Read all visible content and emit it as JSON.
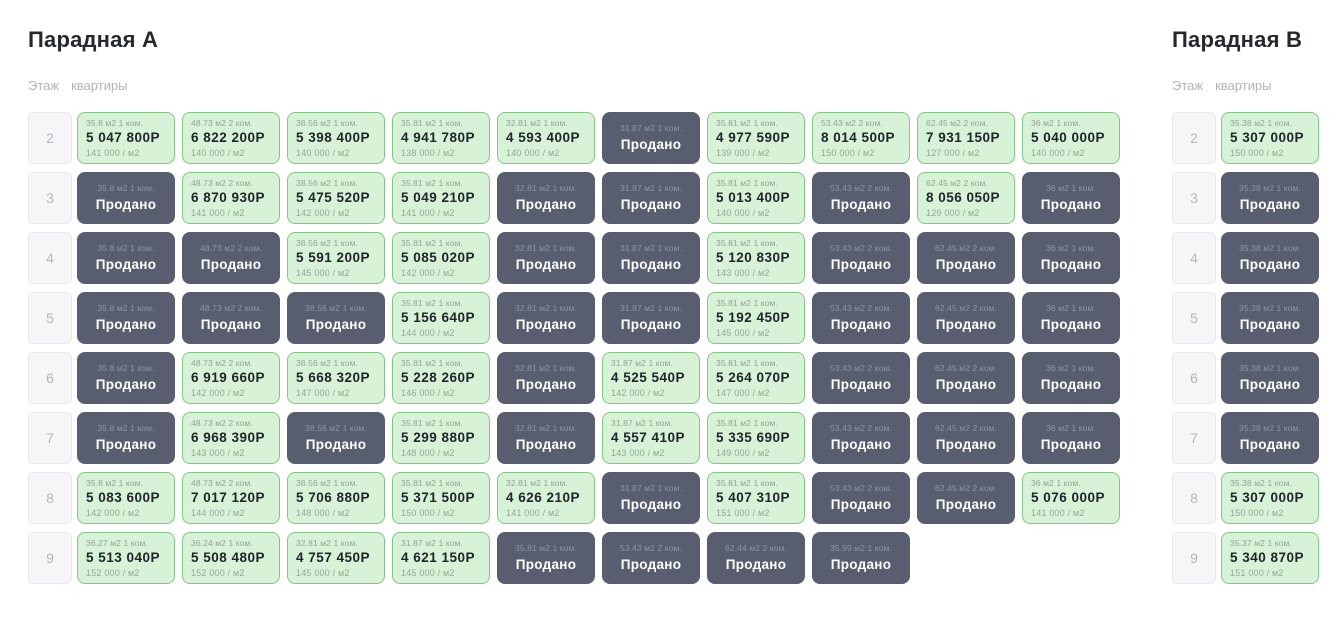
{
  "labels": {
    "sold": "Продано",
    "legend_floor": "Этаж",
    "legend_apartments": "квартиры"
  },
  "colors": {
    "available_bg": "#d7f2d6",
    "available_border": "#82c785",
    "sold_bg": "#585e70",
    "page_bg": "#ffffff"
  },
  "sections": [
    {
      "title": "Парадная А",
      "rows": [
        {
          "floor": "2",
          "cards": [
            {
              "area": "35.8 м2 1 ком.",
              "sold": false,
              "price": "5 047 800Р",
              "per_m2": "141 000 / м2"
            },
            {
              "area": "48.73 м2 2 ком.",
              "sold": false,
              "price": "6 822 200Р",
              "per_m2": "140 000 / м2"
            },
            {
              "area": "38.56 м2 1 ком.",
              "sold": false,
              "price": "5 398 400Р",
              "per_m2": "140 000 / м2"
            },
            {
              "area": "35.81 м2 1 ком.",
              "sold": false,
              "price": "4 941 780Р",
              "per_m2": "138 000 / м2"
            },
            {
              "area": "32.81 м2 1 ком.",
              "sold": false,
              "price": "4 593 400Р",
              "per_m2": "140 000 / м2"
            },
            {
              "area": "31.87 м2 1 ком.",
              "sold": true
            },
            {
              "area": "35.81 м2 1 ком.",
              "sold": false,
              "price": "4 977 590Р",
              "per_m2": "139 000 / м2"
            },
            {
              "area": "53.43 м2 2 ком.",
              "sold": false,
              "price": "8 014 500Р",
              "per_m2": "150 000 / м2"
            },
            {
              "area": "62.45 м2 2 ком.",
              "sold": false,
              "price": "7 931 150Р",
              "per_m2": "127 000 / м2"
            },
            {
              "area": "36 м2 1 ком.",
              "sold": false,
              "price": "5 040 000Р",
              "per_m2": "140 000 / м2"
            }
          ]
        },
        {
          "floor": "3",
          "cards": [
            {
              "area": "35.8 м2 1 ком.",
              "sold": true
            },
            {
              "area": "48.73 м2 2 ком.",
              "sold": false,
              "price": "6 870 930Р",
              "per_m2": "141 000 / м2"
            },
            {
              "area": "38.56 м2 1 ком.",
              "sold": false,
              "price": "5 475 520Р",
              "per_m2": "142 000 / м2"
            },
            {
              "area": "35.81 м2 1 ком.",
              "sold": false,
              "price": "5 049 210Р",
              "per_m2": "141 000 / м2"
            },
            {
              "area": "32.81 м2 1 ком.",
              "sold": true
            },
            {
              "area": "31.87 м2 1 ком.",
              "sold": true
            },
            {
              "area": "35.81 м2 1 ком.",
              "sold": false,
              "price": "5 013 400Р",
              "per_m2": "140 000 / м2"
            },
            {
              "area": "53.43 м2 2 ком.",
              "sold": true
            },
            {
              "area": "62.45 м2 2 ком.",
              "sold": false,
              "price": "8 056 050Р",
              "per_m2": "129 000 / м2"
            },
            {
              "area": "36 м2 1 ком.",
              "sold": true
            }
          ]
        },
        {
          "floor": "4",
          "cards": [
            {
              "area": "35.8 м2 1 ком.",
              "sold": true
            },
            {
              "area": "48.73 м2 2 ком.",
              "sold": true
            },
            {
              "area": "38.56 м2 1 ком.",
              "sold": false,
              "price": "5 591 200Р",
              "per_m2": "145 000 / м2"
            },
            {
              "area": "35.81 м2 1 ком.",
              "sold": false,
              "price": "5 085 020Р",
              "per_m2": "142 000 / м2"
            },
            {
              "area": "32.81 м2 1 ком.",
              "sold": true
            },
            {
              "area": "31.87 м2 1 ком.",
              "sold": true
            },
            {
              "area": "35.81 м2 1 ком.",
              "sold": false,
              "price": "5 120 830Р",
              "per_m2": "143 000 / м2"
            },
            {
              "area": "53.43 м2 2 ком.",
              "sold": true
            },
            {
              "area": "62.45 м2 2 ком.",
              "sold": true
            },
            {
              "area": "36 м2 1 ком.",
              "sold": true
            }
          ]
        },
        {
          "floor": "5",
          "cards": [
            {
              "area": "35.8 м2 1 ком.",
              "sold": true
            },
            {
              "area": "48.73 м2 2 ком.",
              "sold": true
            },
            {
              "area": "38.56 м2 1 ком.",
              "sold": true
            },
            {
              "area": "35.81 м2 1 ком.",
              "sold": false,
              "price": "5 156 640Р",
              "per_m2": "144 000 / м2"
            },
            {
              "area": "32.81 м2 1 ком.",
              "sold": true
            },
            {
              "area": "31.87 м2 1 ком.",
              "sold": true
            },
            {
              "area": "35.81 м2 1 ком.",
              "sold": false,
              "price": "5 192 450Р",
              "per_m2": "145 000 / м2"
            },
            {
              "area": "53.43 м2 2 ком.",
              "sold": true
            },
            {
              "area": "62.45 м2 2 ком.",
              "sold": true
            },
            {
              "area": "36 м2 1 ком.",
              "sold": true
            }
          ]
        },
        {
          "floor": "6",
          "cards": [
            {
              "area": "35.8 м2 1 ком.",
              "sold": true
            },
            {
              "area": "48.73 м2 2 ком.",
              "sold": false,
              "price": "6 919 660Р",
              "per_m2": "142 000 / м2"
            },
            {
              "area": "38.56 м2 1 ком.",
              "sold": false,
              "price": "5 668 320Р",
              "per_m2": "147 000 / м2"
            },
            {
              "area": "35.81 м2 1 ком.",
              "sold": false,
              "price": "5 228 260Р",
              "per_m2": "146 000 / м2"
            },
            {
              "area": "32.81 м2 1 ком.",
              "sold": true
            },
            {
              "area": "31.87 м2 1 ком.",
              "sold": false,
              "price": "4 525 540Р",
              "per_m2": "142 000 / м2"
            },
            {
              "area": "35.81 м2 1 ком.",
              "sold": false,
              "price": "5 264 070Р",
              "per_m2": "147 000 / м2"
            },
            {
              "area": "53.43 м2 2 ком.",
              "sold": true
            },
            {
              "area": "62.45 м2 2 ком.",
              "sold": true
            },
            {
              "area": "36 м2 1 ком.",
              "sold": true
            }
          ]
        },
        {
          "floor": "7",
          "cards": [
            {
              "area": "35.8 м2 1 ком.",
              "sold": true
            },
            {
              "area": "48.73 м2 2 ком.",
              "sold": false,
              "price": "6 968 390Р",
              "per_m2": "143 000 / м2"
            },
            {
              "area": "38.56 м2 1 ком.",
              "sold": true
            },
            {
              "area": "35.81 м2 1 ком.",
              "sold": false,
              "price": "5 299 880Р",
              "per_m2": "148 000 / м2"
            },
            {
              "area": "32.81 м2 1 ком.",
              "sold": true
            },
            {
              "area": "31.87 м2 1 ком.",
              "sold": false,
              "price": "4 557 410Р",
              "per_m2": "143 000 / м2"
            },
            {
              "area": "35.81 м2 1 ком.",
              "sold": false,
              "price": "5 335 690Р",
              "per_m2": "149 000 / м2"
            },
            {
              "area": "53.43 м2 2 ком.",
              "sold": true
            },
            {
              "area": "62.45 м2 2 ком.",
              "sold": true
            },
            {
              "area": "36 м2 1 ком.",
              "sold": true
            }
          ]
        },
        {
          "floor": "8",
          "cards": [
            {
              "area": "35.8 м2 1 ком.",
              "sold": false,
              "price": "5 083 600Р",
              "per_m2": "142 000 / м2"
            },
            {
              "area": "48.73 м2 2 ком.",
              "sold": false,
              "price": "7 017 120Р",
              "per_m2": "144 000 / м2"
            },
            {
              "area": "38.56 м2 1 ком.",
              "sold": false,
              "price": "5 706 880Р",
              "per_m2": "148 000 / м2"
            },
            {
              "area": "35.81 м2 1 ком.",
              "sold": false,
              "price": "5 371 500Р",
              "per_m2": "150 000 / м2"
            },
            {
              "area": "32.81 м2 1 ком.",
              "sold": false,
              "price": "4 626 210Р",
              "per_m2": "141 000 / м2"
            },
            {
              "area": "31.87 м2 1 ком.",
              "sold": true
            },
            {
              "area": "35.81 м2 1 ком.",
              "sold": false,
              "price": "5 407 310Р",
              "per_m2": "151 000 / м2"
            },
            {
              "area": "53.43 м2 2 ком.",
              "sold": true
            },
            {
              "area": "62.45 м2 2 ком.",
              "sold": true
            },
            {
              "area": "36 м2 1 ком.",
              "sold": false,
              "price": "5 076 000Р",
              "per_m2": "141 000 / м2"
            }
          ]
        },
        {
          "floor": "9",
          "cards": [
            {
              "area": "36.27 м2 1 ком.",
              "sold": false,
              "price": "5 513 040Р",
              "per_m2": "152 000 / м2"
            },
            {
              "area": "36.24 м2 1 ком.",
              "sold": false,
              "price": "5 508 480Р",
              "per_m2": "152 000 / м2"
            },
            {
              "area": "32.81 м2 1 ком.",
              "sold": false,
              "price": "4 757 450Р",
              "per_m2": "145 000 / м2"
            },
            {
              "area": "31.87 м2 1 ком.",
              "sold": false,
              "price": "4 621 150Р",
              "per_m2": "145 000 / м2"
            },
            {
              "area": "35.81 м2 1 ком.",
              "sold": true
            },
            {
              "area": "53.43 м2 2 ком.",
              "sold": true
            },
            {
              "area": "62.44 м2 2 ком.",
              "sold": true
            },
            {
              "area": "35.99 м2 1 ком.",
              "sold": true
            }
          ]
        }
      ]
    },
    {
      "title": "Парадная B",
      "rows": [
        {
          "floor": "2",
          "cards": [
            {
              "area": "35.38 м2 1 ком.",
              "sold": false,
              "price": "5 307 000Р",
              "per_m2": "150 000 / м2"
            }
          ]
        },
        {
          "floor": "3",
          "cards": [
            {
              "area": "35.38 м2 1 ком.",
              "sold": true
            }
          ]
        },
        {
          "floor": "4",
          "cards": [
            {
              "area": "35.38 м2 1 ком.",
              "sold": true
            }
          ]
        },
        {
          "floor": "5",
          "cards": [
            {
              "area": "35.38 м2 1 ком.",
              "sold": true
            }
          ]
        },
        {
          "floor": "6",
          "cards": [
            {
              "area": "35.38 м2 1 ком.",
              "sold": true
            }
          ]
        },
        {
          "floor": "7",
          "cards": [
            {
              "area": "35.38 м2 1 ком.",
              "sold": true
            }
          ]
        },
        {
          "floor": "8",
          "cards": [
            {
              "area": "35.38 м2 1 ком.",
              "sold": false,
              "price": "5 307 000Р",
              "per_m2": "150 000 / м2"
            }
          ]
        },
        {
          "floor": "9",
          "cards": [
            {
              "area": "35.37 м2 1 ком.",
              "sold": false,
              "price": "5 340 870Р",
              "per_m2": "151 000 / м2"
            }
          ]
        }
      ]
    }
  ]
}
